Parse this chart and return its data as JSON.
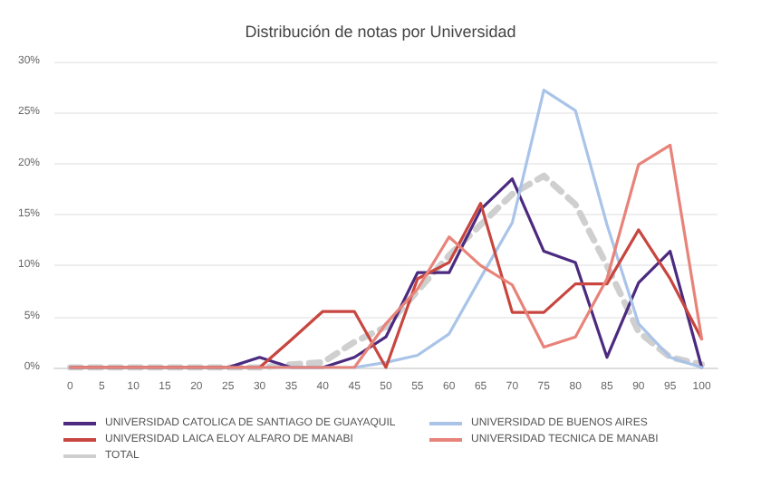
{
  "chart_data": {
    "type": "line",
    "title": "Distribución de notas por Universidad",
    "categories": [
      "0",
      "5",
      "10",
      "15",
      "20",
      "25",
      "30",
      "35",
      "40",
      "45",
      "50",
      "55",
      "60",
      "65",
      "70",
      "75",
      "80",
      "85",
      "90",
      "95",
      "100"
    ],
    "series": [
      {
        "name": "UNIVERSIDAD CATOLICA DE SANTIAGO DE GUAYAQUIL",
        "color": "#4b2a7f",
        "values": [
          0,
          0,
          0,
          0,
          0,
          0,
          1,
          0,
          0,
          1,
          3,
          9.3,
          9.3,
          15.5,
          18.5,
          11.4,
          10.3,
          1,
          8.3,
          11.4,
          0
        ]
      },
      {
        "name": "UNIVERSIDAD DE BUENOS AIRES",
        "color": "#a9c4e8",
        "values": [
          0,
          0,
          0,
          0,
          0,
          0,
          0,
          0,
          0,
          0,
          0.5,
          1.2,
          3.3,
          8.8,
          14.2,
          27.2,
          25.2,
          14,
          4.3,
          1,
          0
        ]
      },
      {
        "name": "UNIVERSIDAD LAICA ELOY ALFARO DE MANABI",
        "color": "#c8463f",
        "values": [
          0,
          0,
          0,
          0,
          0,
          0,
          0,
          2.7,
          5.5,
          5.5,
          0,
          8.7,
          10.3,
          16.1,
          5.4,
          5.4,
          8.2,
          8.2,
          13.5,
          8.7,
          2.8
        ]
      },
      {
        "name": "UNIVERSIDAD TECNICA DE MANABI",
        "color": "#e8837a",
        "values": [
          0,
          0,
          0,
          0,
          0,
          0,
          0,
          0,
          0,
          0,
          4.3,
          7.7,
          12.8,
          10,
          8.1,
          2,
          3,
          8.7,
          19.9,
          21.8,
          2.8
        ]
      },
      {
        "name": "TOTAL",
        "color": "#cfcfcf",
        "line_style": "dashed",
        "values": [
          0,
          0,
          0,
          0,
          0,
          0,
          0,
          0.3,
          0.5,
          2.5,
          4,
          7.5,
          11,
          14,
          17,
          18.8,
          16,
          10,
          3.5,
          1,
          0.3
        ]
      }
    ],
    "ylim": [
      0,
      30
    ],
    "yticks": [
      {
        "value": 0,
        "label": "0%"
      },
      {
        "value": 5,
        "label": "5%"
      },
      {
        "value": 10,
        "label": "10%"
      },
      {
        "value": 15,
        "label": "15%"
      },
      {
        "value": 20,
        "label": "20%"
      },
      {
        "value": 25,
        "label": "25%"
      },
      {
        "value": 30,
        "label": "30%"
      }
    ],
    "grid": "y",
    "legend": "bottom",
    "marker": "none",
    "line_style": "solid"
  }
}
